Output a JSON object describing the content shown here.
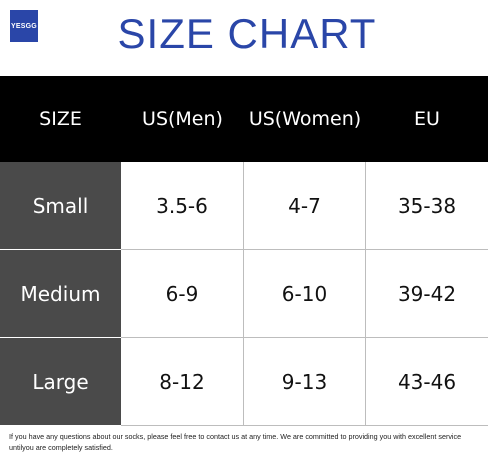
{
  "brand": {
    "logo_text": "YESGG",
    "accent_color": "#2a46a8"
  },
  "title": "SIZE CHART",
  "table": {
    "headers": [
      "SIZE",
      "US(Men)",
      "US(Women)",
      "EU"
    ],
    "rows": [
      {
        "size": "Small",
        "us_men": "3.5-6",
        "us_women": "4-7",
        "eu": "35-38"
      },
      {
        "size": "Medium",
        "us_men": "6-9",
        "us_women": "6-10",
        "eu": "39-42"
      },
      {
        "size": "Large",
        "us_men": "8-12",
        "us_women": "9-13",
        "eu": "43-46"
      }
    ]
  },
  "footer": "If you have any questions about our socks, please feel free to contact us at any time. We are committed to providing you with excellent service untilyou are completely satisfied."
}
